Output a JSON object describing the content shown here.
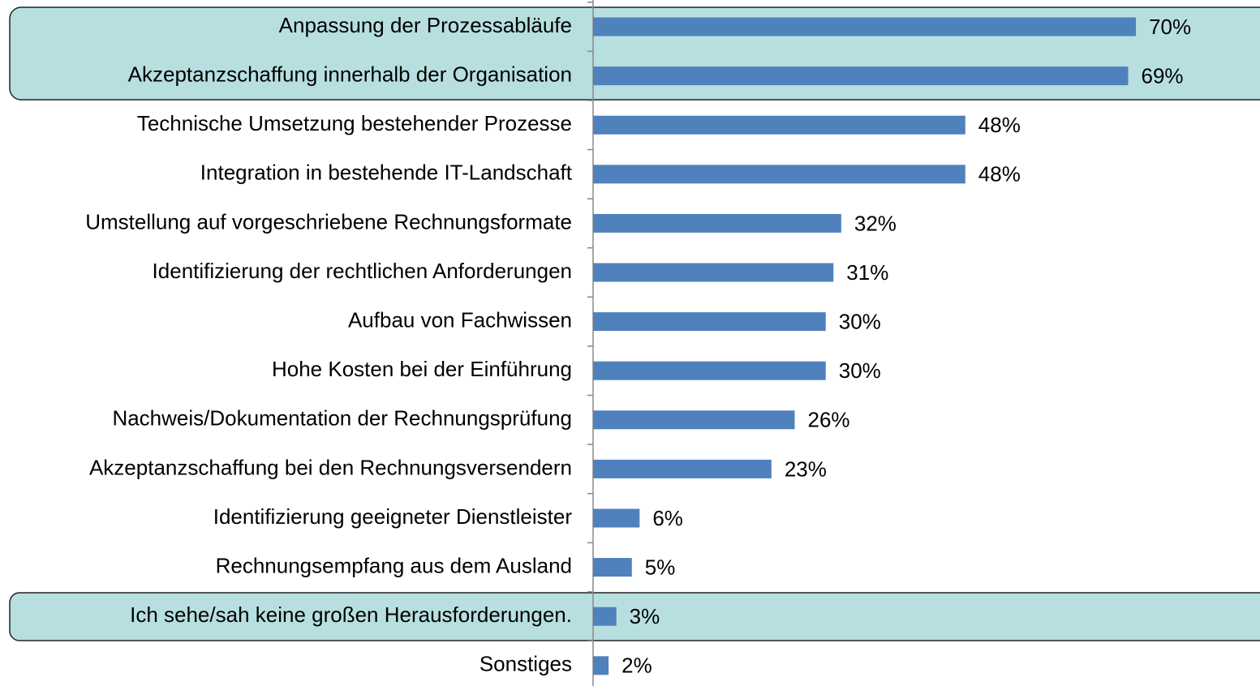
{
  "chart_data": {
    "type": "barh",
    "categories": [
      "Anpassung der Prozessabläufe",
      "Akzeptanzschaffung innerhalb der Organisation",
      "Technische Umsetzung bestehender Prozesse",
      "Integration in bestehende IT-Landschaft",
      "Umstellung auf vorgeschriebene Rechnungsformate",
      "Identifizierung der rechtlichen Anforderungen",
      "Aufbau von Fachwissen",
      "Hohe Kosten bei der Einführung",
      "Nachweis/Dokumentation der Rechnungsprüfung",
      "Akzeptanzschaffung bei den Rechnungsversendern",
      "Identifizierung geeigneter Dienstleister",
      "Rechnungsempfang aus dem Ausland",
      "Ich sehe/sah keine großen Herausforderungen.",
      "Sonstiges"
    ],
    "values": [
      70,
      69,
      48,
      48,
      32,
      31,
      30,
      30,
      26,
      23,
      6,
      5,
      3,
      2
    ],
    "value_labels": [
      "70%",
      "69%",
      "48%",
      "48%",
      "32%",
      "31%",
      "30%",
      "30%",
      "26%",
      "23%",
      "6%",
      "5%",
      "3%",
      "2%"
    ],
    "color": "#4f81bd",
    "xlim": [
      0,
      86
    ]
  }
}
